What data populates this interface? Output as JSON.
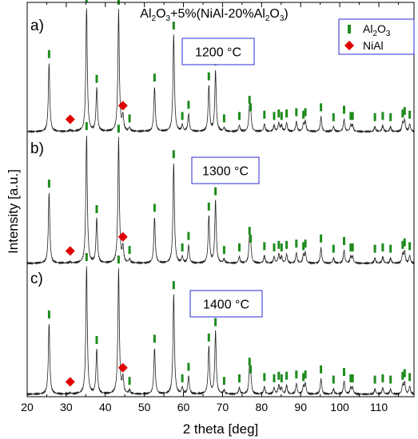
{
  "chart_data": {
    "type": "line",
    "title_parts": [
      "Al",
      "2",
      "O",
      "3",
      "+5%(NiAl-20%Al",
      "2",
      "O",
      "3",
      ")"
    ],
    "xlabel": "2 theta [deg]",
    "ylabel": "Intensity [a.u.]",
    "xlim": [
      20,
      119
    ],
    "x_ticks": [
      20,
      30,
      40,
      50,
      60,
      70,
      80,
      90,
      100,
      110
    ],
    "legend": {
      "placement": "top-right",
      "entries": [
        {
          "label_parts": [
            "Al",
            "2",
            "O",
            "3"
          ],
          "marker": "green-bar",
          "color": "#1e8c1e"
        },
        {
          "label_parts": [
            "NiAl"
          ],
          "marker": "red-diamond",
          "color": "#e00000"
        }
      ]
    },
    "al2o3_peaks": [
      {
        "x": 25.6,
        "h": 0.55
      },
      {
        "x": 35.2,
        "h": 1.0
      },
      {
        "x": 37.8,
        "h": 0.35
      },
      {
        "x": 43.4,
        "h": 0.98
      },
      {
        "x": 46.2,
        "h": 0.03
      },
      {
        "x": 52.6,
        "h": 0.36
      },
      {
        "x": 57.5,
        "h": 0.78
      },
      {
        "x": 59.7,
        "h": 0.05
      },
      {
        "x": 61.3,
        "h": 0.14
      },
      {
        "x": 66.5,
        "h": 0.37
      },
      {
        "x": 68.2,
        "h": 0.49
      },
      {
        "x": 70.4,
        "h": 0.03
      },
      {
        "x": 74.3,
        "h": 0.05
      },
      {
        "x": 76.9,
        "h": 0.18
      },
      {
        "x": 77.2,
        "h": 0.12
      },
      {
        "x": 80.7,
        "h": 0.06
      },
      {
        "x": 83.2,
        "h": 0.05
      },
      {
        "x": 84.4,
        "h": 0.07
      },
      {
        "x": 85.1,
        "h": 0.05
      },
      {
        "x": 86.4,
        "h": 0.07
      },
      {
        "x": 88.9,
        "h": 0.08
      },
      {
        "x": 90.7,
        "h": 0.06
      },
      {
        "x": 91.2,
        "h": 0.08
      },
      {
        "x": 95.2,
        "h": 0.12
      },
      {
        "x": 98.4,
        "h": 0.04
      },
      {
        "x": 101.1,
        "h": 0.1
      },
      {
        "x": 102.8,
        "h": 0.05
      },
      {
        "x": 103.3,
        "h": 0.05
      },
      {
        "x": 109.0,
        "h": 0.04
      },
      {
        "x": 111.0,
        "h": 0.05
      },
      {
        "x": 113.0,
        "h": 0.04
      },
      {
        "x": 116.1,
        "h": 0.07
      },
      {
        "x": 116.6,
        "h": 0.09
      },
      {
        "x": 117.9,
        "h": 0.06
      }
    ],
    "nial_peaks": [
      {
        "x": 31.0,
        "h": 0.01
      },
      {
        "x": 44.5,
        "h": 0.12
      }
    ],
    "panels": [
      {
        "label": "a)",
        "temperature": "1200 °C",
        "scale": 1.0
      },
      {
        "label": "b)",
        "temperature": "1300 °C",
        "scale": 1.0
      },
      {
        "label": "c)",
        "temperature": "1400 °C",
        "scale": 1.0
      }
    ]
  }
}
